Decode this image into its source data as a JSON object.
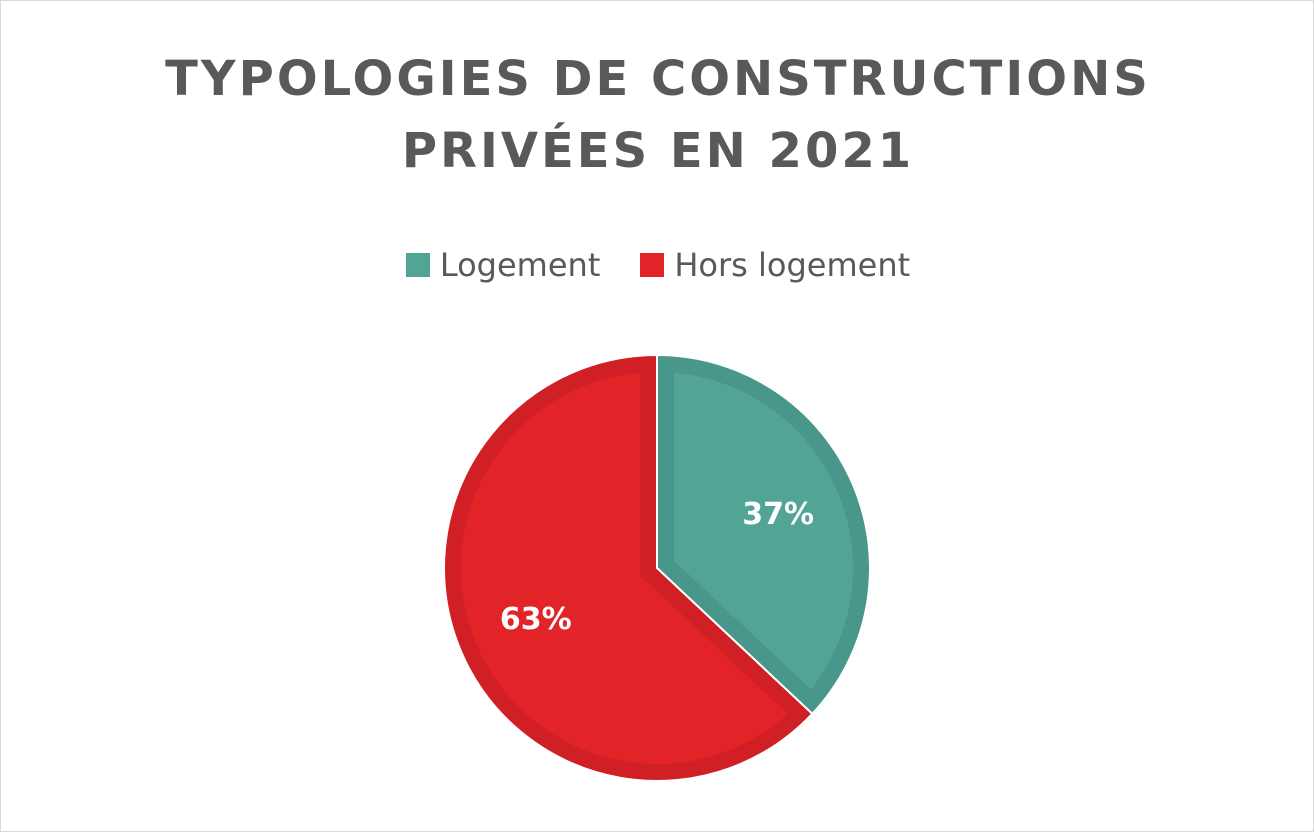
{
  "chart_data": {
    "type": "pie",
    "title": "TYPOLOGIES DE CONSTRUCTIONS\nPRIVÉES EN 2021",
    "categories": [
      "Logement",
      "Hors logement"
    ],
    "values": [
      37,
      63
    ],
    "data_labels": [
      "37%",
      "63%"
    ],
    "colors": [
      "#52a595",
      "#e22328"
    ],
    "border_colors": [
      "#48978a",
      "#d02026"
    ],
    "legend_position": "top",
    "start_angle_deg": 0,
    "direction": "clockwise"
  }
}
